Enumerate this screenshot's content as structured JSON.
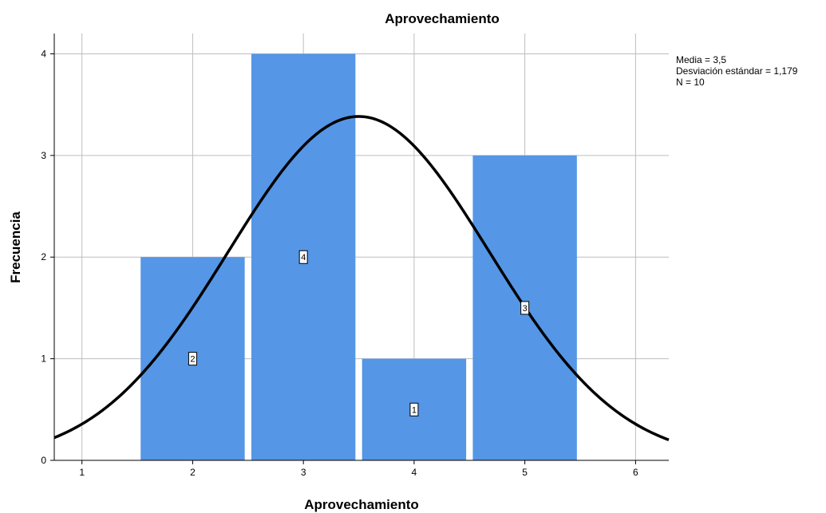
{
  "chart_data": {
    "type": "bar",
    "title": "Aprovechamiento",
    "xlabel": "Aprovechamiento",
    "ylabel": "Frecuencia",
    "xlim": [
      0.75,
      6.3
    ],
    "ylim": [
      0,
      4.2
    ],
    "xticks": [
      1,
      2,
      3,
      4,
      5,
      6
    ],
    "yticks": [
      0,
      1,
      2,
      3,
      4
    ],
    "grid": true,
    "bar_width": 0.94,
    "bars": [
      {
        "x": 2,
        "value": 2,
        "label": "2"
      },
      {
        "x": 3,
        "value": 4,
        "label": "4"
      },
      {
        "x": 4,
        "value": 1,
        "label": "1"
      },
      {
        "x": 5,
        "value": 3,
        "label": "3"
      }
    ],
    "normal_curve": {
      "mean": 3.5,
      "sd": 1.179,
      "n": 10,
      "bin_width": 1
    },
    "stats_box": {
      "media": "Media = 3,5",
      "desviacion": "Desviación estándar = 1,179",
      "n": "N = 10"
    },
    "bar_color": "#5596E6",
    "curve_color": "#000000",
    "grid_color": "#BDBDBD"
  }
}
